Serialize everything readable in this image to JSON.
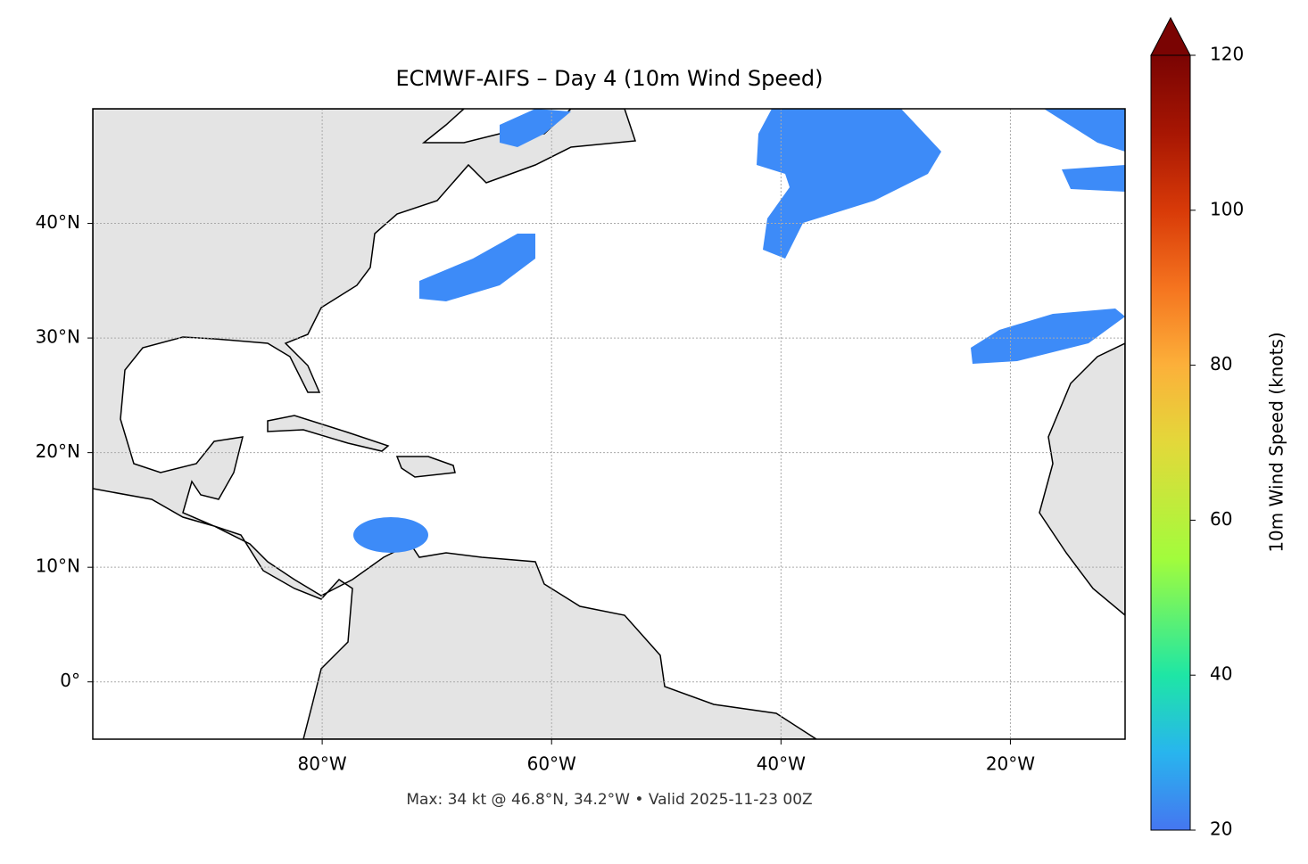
{
  "map": {
    "title": "ECMWF-AIFS – Day 4 (10m Wind Speed)",
    "note": "Max: 34 kt @ 46.8°N, 34.2°W • Valid 2025-11-23 00Z",
    "xlim": [
      -100,
      -10
    ],
    "ylim": [
      -5,
      50
    ],
    "xticks": [
      {
        "value": -80,
        "label": "80°W"
      },
      {
        "value": -60,
        "label": "60°W"
      },
      {
        "value": -40,
        "label": "40°W"
      },
      {
        "value": -20,
        "label": "20°W"
      }
    ],
    "yticks": [
      {
        "value": 0,
        "label": "0°"
      },
      {
        "value": 10,
        "label": "10°N"
      },
      {
        "value": 20,
        "label": "20°N"
      },
      {
        "value": 30,
        "label": "30°N"
      },
      {
        "value": 40,
        "label": "40°N"
      }
    ],
    "grid": true,
    "colorbar": {
      "label": "10m Wind Speed (knots)",
      "lim": [
        20,
        120
      ],
      "ticks": [
        20,
        40,
        60,
        80,
        100,
        120
      ]
    }
  }
}
